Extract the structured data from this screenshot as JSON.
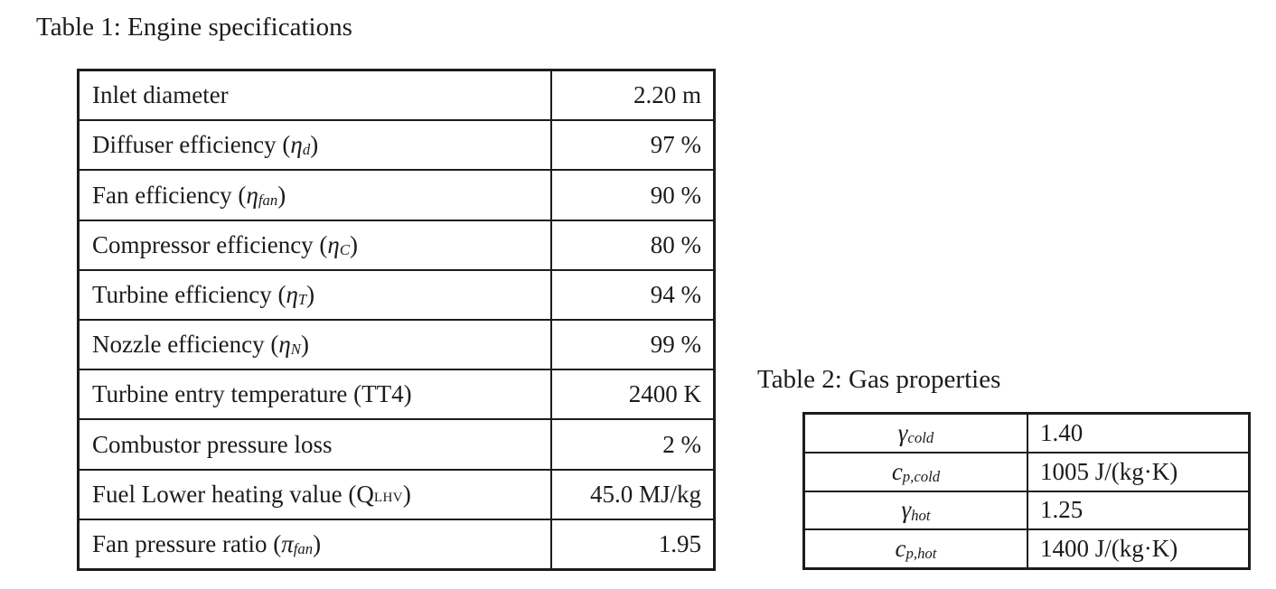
{
  "page": {
    "background_color": "#ffffff",
    "text_color": "#1c1c1c",
    "border_color": "#1c1c1c"
  },
  "table1": {
    "caption": "Table 1: Engine specifications",
    "rows": [
      {
        "label": [
          [
            "t",
            "Inlet diameter"
          ]
        ],
        "value": "2.20 m"
      },
      {
        "label": [
          [
            "t",
            "Diffuser efficiency ("
          ],
          [
            "i",
            "η"
          ],
          [
            "sub",
            "d"
          ],
          [
            "t",
            ")"
          ]
        ],
        "value": "97 %"
      },
      {
        "label": [
          [
            "t",
            "Fan efficiency ("
          ],
          [
            "i",
            "η"
          ],
          [
            "sub",
            "fan"
          ],
          [
            "t",
            ")"
          ]
        ],
        "value": "90 %"
      },
      {
        "label": [
          [
            "t",
            "Compressor efficiency ("
          ],
          [
            "i",
            "η"
          ],
          [
            "sub",
            "C"
          ],
          [
            "t",
            ")"
          ]
        ],
        "value": "80 %"
      },
      {
        "label": [
          [
            "t",
            "Turbine efficiency ("
          ],
          [
            "i",
            "η"
          ],
          [
            "sub",
            "T"
          ],
          [
            "t",
            ")"
          ]
        ],
        "value": "94 %"
      },
      {
        "label": [
          [
            "t",
            "Nozzle efficiency ("
          ],
          [
            "i",
            "η"
          ],
          [
            "sub",
            "N"
          ],
          [
            "t",
            ")"
          ]
        ],
        "value": "99 %"
      },
      {
        "label": [
          [
            "t",
            "Turbine entry temperature (TT4)"
          ]
        ],
        "value": "2400 K"
      },
      {
        "label": [
          [
            "t",
            "Combustor pressure loss"
          ]
        ],
        "value": "2 %"
      },
      {
        "label": [
          [
            "t",
            "Fuel Lower heating value (Q"
          ],
          [
            "subsc",
            "LHV"
          ],
          [
            "t",
            ")"
          ]
        ],
        "value": "45.0 MJ/kg"
      },
      {
        "label": [
          [
            "t",
            "Fan pressure ratio ("
          ],
          [
            "i",
            "π"
          ],
          [
            "sub",
            "fan"
          ],
          [
            "t",
            ")"
          ]
        ],
        "value": "1.95"
      }
    ]
  },
  "table2": {
    "caption": "Table 2: Gas properties",
    "rows": [
      {
        "label": [
          [
            "i",
            "γ"
          ],
          [
            "sub",
            "cold"
          ]
        ],
        "value": "1.40"
      },
      {
        "label": [
          [
            "i",
            "c"
          ],
          [
            "sub",
            "p,cold"
          ]
        ],
        "value": "1005 J/(kg·K)"
      },
      {
        "label": [
          [
            "i",
            "γ"
          ],
          [
            "sub",
            "hot"
          ]
        ],
        "value": "1.25"
      },
      {
        "label": [
          [
            "i",
            "c"
          ],
          [
            "sub",
            "p,hot"
          ]
        ],
        "value": "1400 J/(kg·K)"
      }
    ]
  }
}
